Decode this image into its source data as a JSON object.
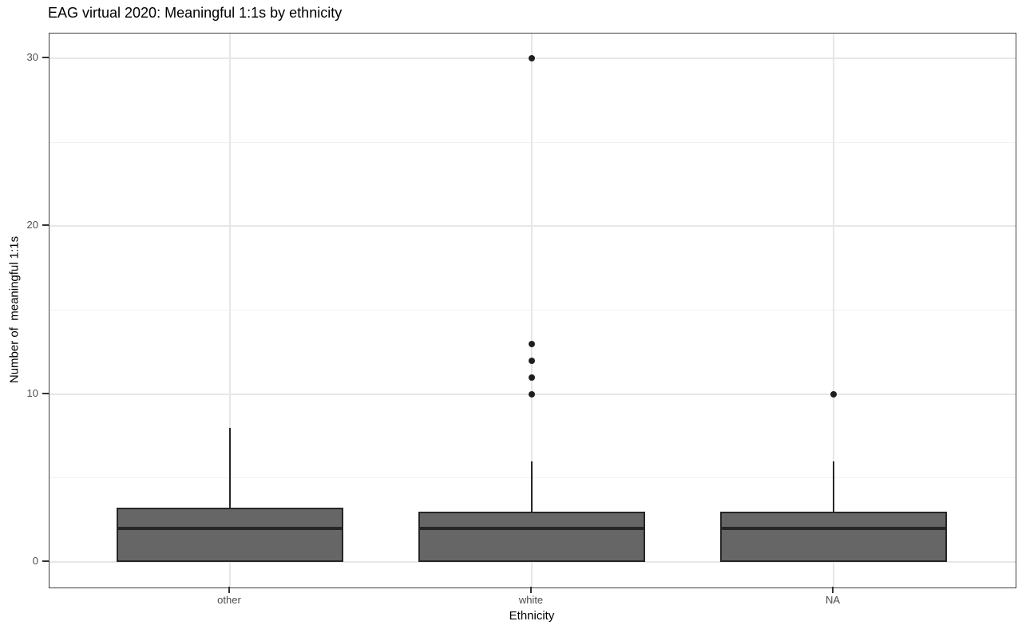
{
  "title": "EAG virtual 2020: Meaningful 1:1s by ethnicity",
  "colors": {
    "box_fill": "#666666",
    "box_stroke": "#262626",
    "median": "#262626",
    "outlier": "#1f1f1f",
    "grid_major": "#e7e7e7",
    "grid_minor": "#f2f2f2",
    "panel_border": "#404040",
    "tick_mark": "#333333",
    "tick_label": "#4d4d4d",
    "title_text": "#000000"
  },
  "chart_data": {
    "type": "boxplot",
    "title": "EAG virtual 2020: Meaningful 1:1s by ethnicity",
    "xlabel": "Ethnicity",
    "ylabel": "Number of  meaningful 1:1s",
    "ylim": [
      0,
      30
    ],
    "y_ticks": [
      0,
      10,
      20,
      30
    ],
    "y_minor_gridlines": [
      5,
      15,
      25
    ],
    "grid": true,
    "legend": false,
    "categories": [
      "other",
      "white",
      "NA"
    ],
    "series": [
      {
        "category": "other",
        "whisker_low": 0,
        "q1": 0,
        "median": 2,
        "q3": 3.25,
        "whisker_high": 8,
        "outliers": []
      },
      {
        "category": "white",
        "whisker_low": 0,
        "q1": 0,
        "median": 2,
        "q3": 3,
        "whisker_high": 6,
        "outliers": [
          10,
          11,
          12,
          13,
          30
        ]
      },
      {
        "category": "NA",
        "whisker_low": 0,
        "q1": 0,
        "median": 2,
        "q3": 3,
        "whisker_high": 6,
        "outliers": [
          10
        ]
      }
    ]
  }
}
